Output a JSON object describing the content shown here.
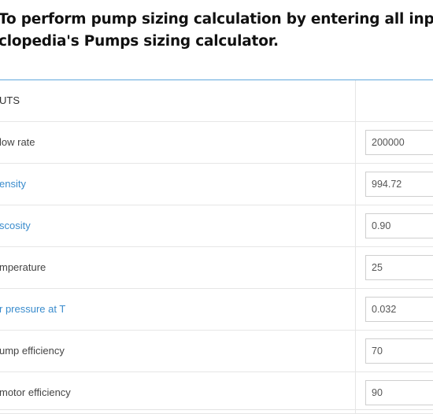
{
  "heading": {
    "line1": " To perform pump sizing calculation by entering all inp",
    "line2": "clopedia's Pumps sizing calculator."
  },
  "colors": {
    "accent_rule": "#62a9dd",
    "link": "#3a8ccd"
  },
  "inputs_table": {
    "header_label": "UTS",
    "rows": [
      {
        "label": "low rate",
        "value": "200000",
        "is_link": false
      },
      {
        "label": "ensity",
        "value": "994.72",
        "is_link": true
      },
      {
        "label": "scosity",
        "value": "0.90",
        "is_link": true
      },
      {
        "label": "mperature",
        "value": "25",
        "is_link": false
      },
      {
        "label": "r pressure at T",
        "value": "0.032",
        "is_link": true
      },
      {
        "label": "ump efficiency",
        "value": "70",
        "is_link": false
      },
      {
        "label": "motor efficiency",
        "value": "90",
        "is_link": false
      }
    ]
  }
}
